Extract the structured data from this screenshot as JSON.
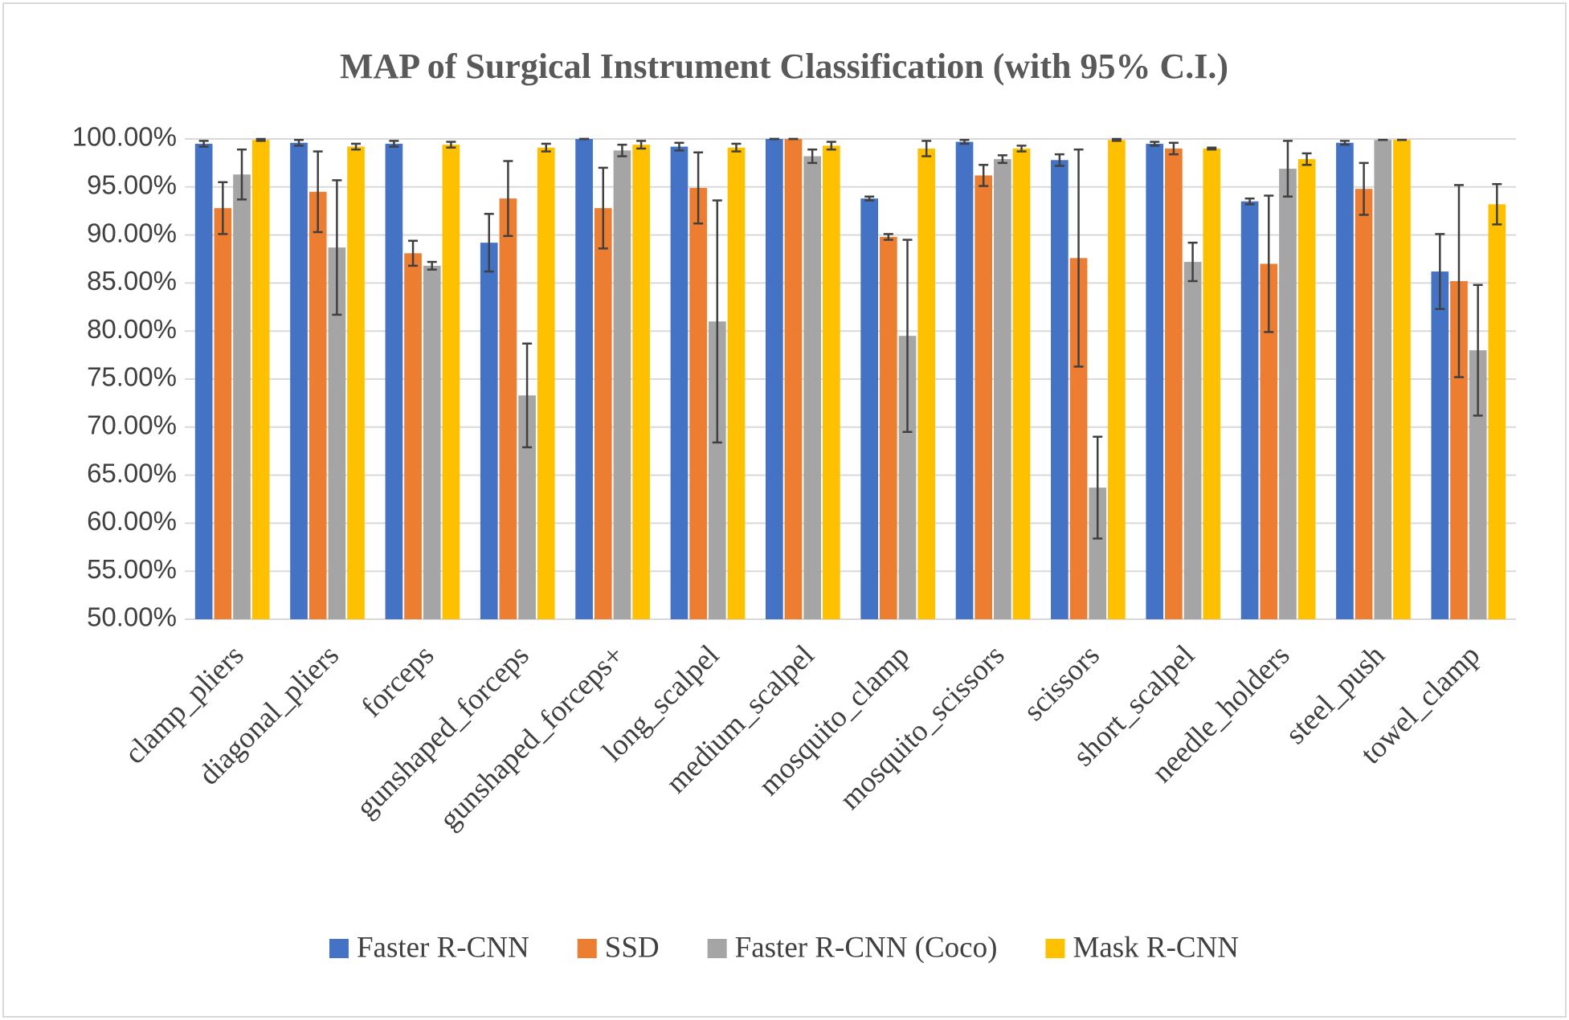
{
  "chart_data": {
    "type": "bar",
    "title": "MAP of Surgical Instrument Classification (with 95% C.I.)",
    "categories": [
      "clamp_pliers",
      "diagonal_pliers",
      "forceps",
      "gunshaped_forceps",
      "gunshaped_forceps+",
      "long_scalpel",
      "medium_scalpel",
      "mosquito_clamp",
      "mosquito_scissors",
      "scissors",
      "short_scalpel",
      "needle_holders",
      "steel_push",
      "towel_clamp"
    ],
    "series": [
      {
        "name": "Faster R-CNN",
        "color": "#4472c4",
        "values": [
          99.5,
          99.6,
          99.5,
          89.2,
          100,
          99.2,
          100,
          93.8,
          99.7,
          97.8,
          99.5,
          93.5,
          99.6,
          86.2
        ],
        "errors": [
          0.3,
          0.3,
          0.3,
          3,
          0,
          0.4,
          0,
          0.2,
          0.2,
          0.6,
          0.2,
          0.3,
          0.2,
          3.9
        ]
      },
      {
        "name": "SSD",
        "color": "#ed7d31",
        "values": [
          92.8,
          94.5,
          88.1,
          93.8,
          92.8,
          94.9,
          100,
          89.8,
          96.2,
          87.6,
          99.0,
          87.0,
          94.8,
          85.2
        ],
        "errors": [
          2.7,
          4.2,
          1.3,
          3.9,
          4.2,
          3.7,
          0,
          0.3,
          1.1,
          11.3,
          0.6,
          7.1,
          2.7,
          10
        ]
      },
      {
        "name": "Faster R-CNN (Coco)",
        "color": "#a5a5a5",
        "values": [
          96.3,
          88.7,
          86.8,
          73.3,
          98.8,
          81.0,
          98.2,
          79.5,
          97.9,
          63.7,
          87.2,
          96.9,
          99.9,
          78.0
        ],
        "errors": [
          2.6,
          7,
          0.4,
          5.4,
          0.6,
          12.6,
          0.7,
          10,
          0.4,
          5.3,
          2.0,
          2.9,
          0,
          6.8
        ]
      },
      {
        "name": "Mask R-CNN",
        "color": "#ffc000",
        "values": [
          99.9,
          99.2,
          99.4,
          99.1,
          99.4,
          99.1,
          99.3,
          99.0,
          99.0,
          99.9,
          99.0,
          97.9,
          99.9,
          93.2
        ],
        "errors": [
          0.1,
          0.3,
          0.3,
          0.4,
          0.4,
          0.4,
          0.4,
          0.8,
          0.3,
          0.1,
          0.1,
          0.6,
          0,
          2.1
        ]
      }
    ],
    "ylim": [
      50,
      100
    ],
    "yticks": [
      {
        "value": 50,
        "label": "50.00%"
      },
      {
        "value": 55,
        "label": "55.00%"
      },
      {
        "value": 60,
        "label": "60.00%"
      },
      {
        "value": 65,
        "label": "65.00%"
      },
      {
        "value": 70,
        "label": "70.00%"
      },
      {
        "value": 75,
        "label": "75.00%"
      },
      {
        "value": 80,
        "label": "80.00%"
      },
      {
        "value": 85,
        "label": "85.00%"
      },
      {
        "value": 90,
        "label": "90.00%"
      },
      {
        "value": 95,
        "label": "95.00%"
      },
      {
        "value": 100,
        "label": "100.00%"
      }
    ],
    "grid": true,
    "legend": "bottom"
  }
}
